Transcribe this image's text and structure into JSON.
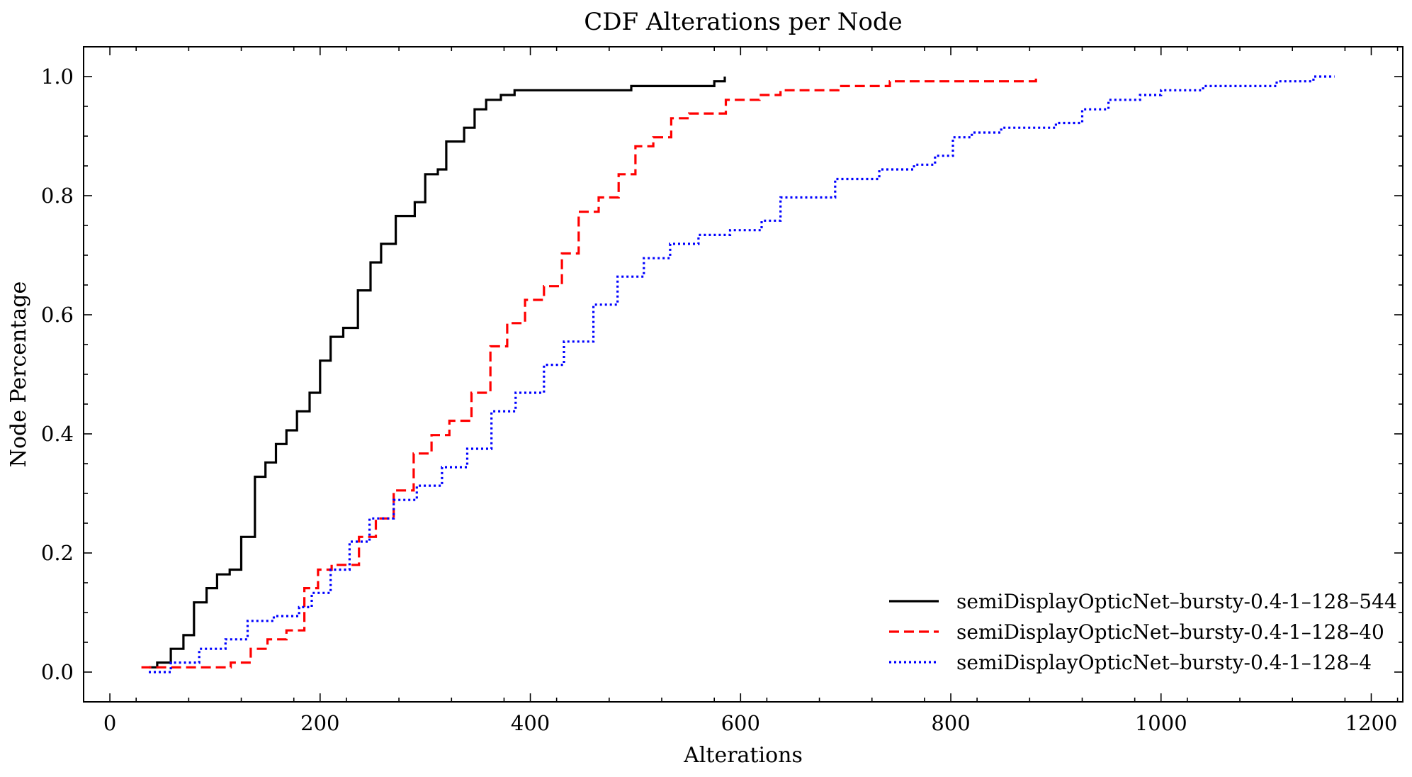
{
  "chart_data": {
    "type": "line",
    "step": true,
    "title": "CDF Alterations per Node",
    "xlabel": "Alterations",
    "ylabel": "Node Percentage",
    "xlim": [
      -25,
      1230
    ],
    "ylim": [
      -0.05,
      1.05
    ],
    "xticks": [
      0,
      200,
      400,
      600,
      800,
      1000,
      1200
    ],
    "xtick_labels": [
      "0",
      "200",
      "400",
      "600",
      "800",
      "1000",
      "1200"
    ],
    "yticks": [
      0.0,
      0.2,
      0.4,
      0.6,
      0.8,
      1.0
    ],
    "ytick_labels": [
      "0.0",
      "0.2",
      "0.4",
      "0.6",
      "0.8",
      "1.0"
    ],
    "grid": false,
    "legend_position": "bottom-right",
    "series": [
      {
        "name": "semiDisplayOpticNet–bursty-0.4-1–128–544",
        "color": "#000000",
        "dash": "solid",
        "x": [
          37,
          45,
          58,
          70,
          80,
          92,
          102,
          114,
          125,
          138,
          148,
          158,
          168,
          178,
          190,
          200,
          210,
          222,
          236,
          248,
          258,
          272,
          290,
          300,
          312,
          320,
          337,
          347,
          358,
          372,
          385,
          400,
          420,
          440,
          460,
          480,
          496,
          520,
          560,
          575,
          585
        ],
        "y": [
          0.008,
          0.016,
          0.039,
          0.062,
          0.117,
          0.141,
          0.164,
          0.172,
          0.227,
          0.328,
          0.352,
          0.383,
          0.406,
          0.438,
          0.469,
          0.523,
          0.563,
          0.578,
          0.641,
          0.688,
          0.719,
          0.766,
          0.789,
          0.836,
          0.844,
          0.891,
          0.914,
          0.945,
          0.961,
          0.969,
          0.977,
          0.977,
          0.977,
          0.977,
          0.977,
          0.977,
          0.984,
          0.984,
          0.984,
          0.992,
          1.0
        ]
      },
      {
        "name": "semiDisplayOpticNet–bursty-0.4-1–128–40",
        "color": "#ff0000",
        "dash": "dashed",
        "x": [
          30,
          72,
          115,
          134,
          150,
          168,
          185,
          198,
          211,
          237,
          253,
          270,
          289,
          306,
          323,
          344,
          362,
          378,
          395,
          413,
          430,
          446,
          465,
          484,
          500,
          517,
          534,
          551,
          586,
          618,
          638,
          667,
          693,
          742,
          780,
          870,
          881
        ],
        "y": [
          0.008,
          0.008,
          0.016,
          0.039,
          0.055,
          0.07,
          0.141,
          0.172,
          0.18,
          0.227,
          0.258,
          0.305,
          0.367,
          0.398,
          0.422,
          0.469,
          0.547,
          0.586,
          0.625,
          0.648,
          0.703,
          0.773,
          0.797,
          0.836,
          0.883,
          0.898,
          0.93,
          0.938,
          0.961,
          0.969,
          0.977,
          0.977,
          0.984,
          0.992,
          0.992,
          0.992,
          1.0
        ]
      },
      {
        "name": "semiDisplayOpticNet–bursty-0.4-1–128–4",
        "color": "#0000ff",
        "dash": "dotted",
        "x": [
          37,
          58,
          85,
          110,
          131,
          156,
          180,
          192,
          210,
          228,
          247,
          270,
          292,
          316,
          340,
          363,
          386,
          413,
          432,
          460,
          483,
          508,
          533,
          560,
          590,
          620,
          638,
          668,
          690,
          715,
          732,
          765,
          785,
          802,
          820,
          848,
          900,
          925,
          950,
          980,
          1000,
          1040,
          1070,
          1110,
          1145,
          1165
        ],
        "y": [
          0.0,
          0.016,
          0.039,
          0.055,
          0.086,
          0.094,
          0.109,
          0.133,
          0.172,
          0.219,
          0.258,
          0.289,
          0.313,
          0.344,
          0.375,
          0.438,
          0.469,
          0.516,
          0.555,
          0.617,
          0.664,
          0.695,
          0.719,
          0.734,
          0.742,
          0.758,
          0.797,
          0.797,
          0.828,
          0.828,
          0.844,
          0.852,
          0.867,
          0.898,
          0.906,
          0.914,
          0.922,
          0.945,
          0.961,
          0.969,
          0.977,
          0.984,
          0.984,
          0.992,
          1.0,
          1.0
        ]
      }
    ]
  }
}
